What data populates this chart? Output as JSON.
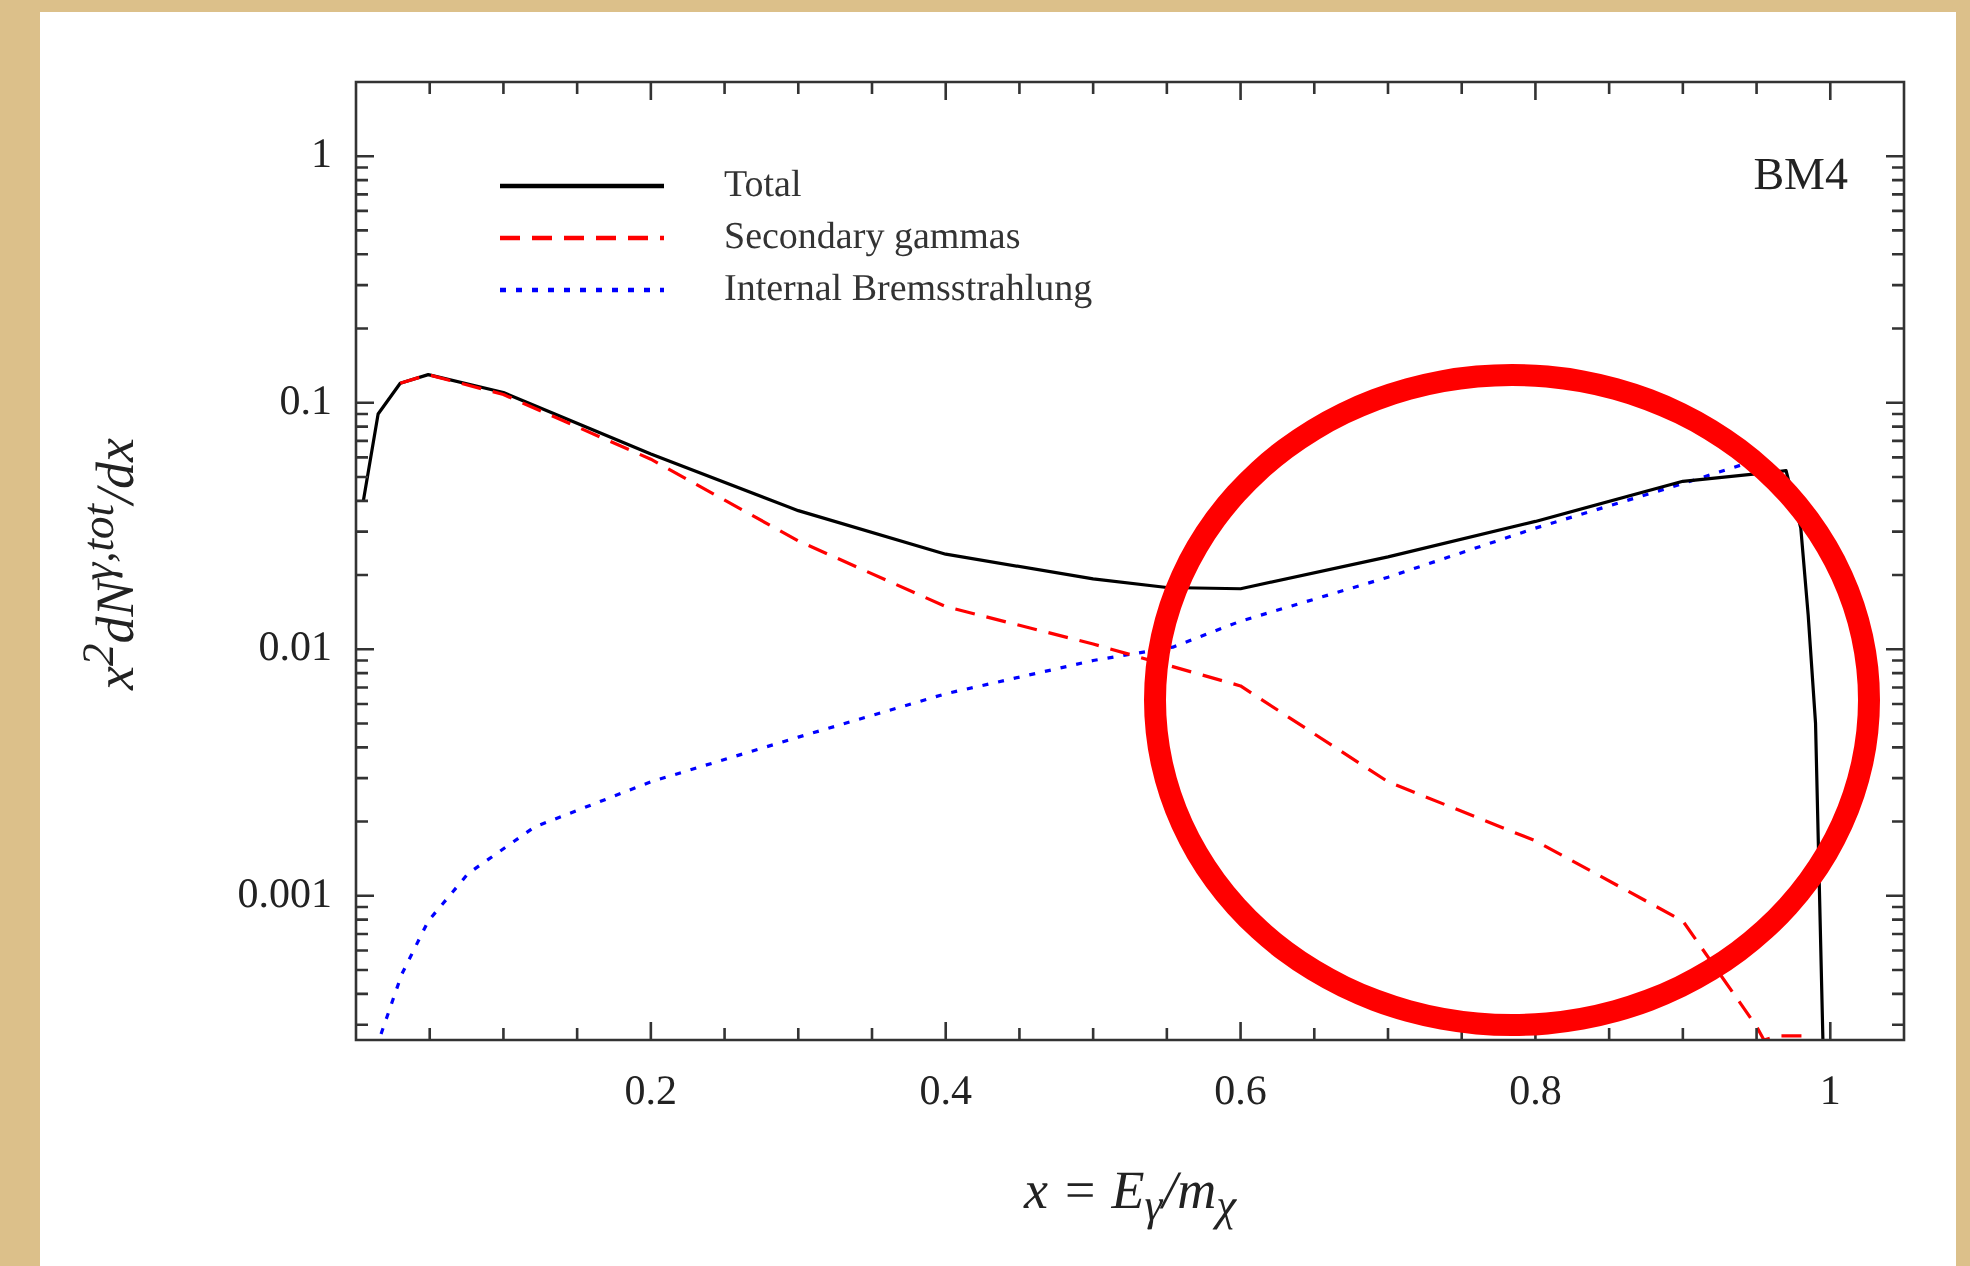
{
  "chart_data": {
    "type": "line",
    "xlabel": "x = E$_{γ}$/m$_{χ}$",
    "ylabel": "x$^{2}$dN$^{γ,tot}$/dx",
    "annotations": [
      "BM4"
    ],
    "log": "y",
    "grid": false,
    "legend": "top left",
    "marker": "none",
    "xlim": [
      0,
      1.05
    ],
    "ylim": [
      0.00026,
      2
    ],
    "xticks": [
      {
        "value": 0.05,
        "label": null
      },
      {
        "value": 0.1,
        "label": null
      },
      {
        "value": 0.15,
        "label": null
      },
      0.2,
      {
        "value": 0.25,
        "label": null
      },
      {
        "value": 0.3,
        "label": null
      },
      {
        "value": 0.35,
        "label": null
      },
      0.4,
      {
        "value": 0.45,
        "label": null
      },
      {
        "value": 0.5,
        "label": null
      },
      {
        "value": 0.55,
        "label": null
      },
      0.6,
      {
        "value": 0.65,
        "label": null
      },
      {
        "value": 0.7,
        "label": null
      },
      {
        "value": 0.75,
        "label": null
      },
      0.8,
      {
        "value": 0.85,
        "label": null
      },
      {
        "value": 0.9,
        "label": null
      },
      {
        "value": 0.95,
        "label": null
      },
      1
    ],
    "yticks": [
      {
        "value": 0.0003,
        "label": null
      },
      {
        "value": 0.0004,
        "label": null
      },
      {
        "value": 0.0005,
        "label": null
      },
      {
        "value": 0.0006,
        "label": null
      },
      {
        "value": 0.0007,
        "label": null
      },
      {
        "value": 0.0008,
        "label": null
      },
      {
        "value": 0.0009,
        "label": null
      },
      0.001,
      {
        "value": 0.002,
        "label": null
      },
      {
        "value": 0.003,
        "label": null
      },
      {
        "value": 0.004,
        "label": null
      },
      {
        "value": 0.005,
        "label": null
      },
      {
        "value": 0.006,
        "label": null
      },
      {
        "value": 0.007,
        "label": null
      },
      {
        "value": 0.008,
        "label": null
      },
      {
        "value": 0.009,
        "label": null
      },
      0.01,
      {
        "value": 0.02,
        "label": null
      },
      {
        "value": 0.03,
        "label": null
      },
      {
        "value": 0.04,
        "label": null
      },
      {
        "value": 0.05,
        "label": null
      },
      {
        "value": 0.06,
        "label": null
      },
      {
        "value": 0.07,
        "label": null
      },
      {
        "value": 0.08,
        "label": null
      },
      {
        "value": 0.09,
        "label": null
      },
      0.1,
      {
        "value": 0.2,
        "label": null
      },
      {
        "value": 0.3,
        "label": null
      },
      {
        "value": 0.4,
        "label": null
      },
      {
        "value": 0.5,
        "label": null
      },
      {
        "value": 0.6,
        "label": null
      },
      {
        "value": 0.7,
        "label": null
      },
      {
        "value": 0.8,
        "label": null
      },
      {
        "value": 0.9,
        "label": null
      },
      1
    ],
    "series": [
      {
        "name": "Total",
        "color": "#000000",
        "line_style": "solid",
        "x": [
          0.005,
          0.015,
          0.03,
          0.049,
          0.1,
          0.2,
          0.3,
          0.4,
          0.5,
          0.55,
          0.6,
          0.7,
          0.8,
          0.9,
          0.97,
          0.98,
          0.985,
          0.99,
          0.995
        ],
        "values": [
          0.04,
          0.09,
          0.12,
          0.13,
          0.11,
          0.062,
          0.0365,
          0.0243,
          0.0193,
          0.0178,
          0.0176,
          0.0237,
          0.033,
          0.048,
          0.053,
          0.031,
          0.0138,
          0.005,
          0.00026
        ]
      },
      {
        "name": "Secondary gammas",
        "color": "#ff0000",
        "line_style": "dashed",
        "x": [
          0.03,
          0.049,
          0.1,
          0.2,
          0.3,
          0.4,
          0.5,
          0.6,
          0.7,
          0.8,
          0.9,
          0.95,
          0.955,
          0.965,
          0.985
        ],
        "values": [
          0.12,
          0.13,
          0.108,
          0.059,
          0.0275,
          0.0149,
          0.0105,
          0.0071,
          0.0029,
          0.00167,
          0.00079,
          0.000295,
          0.00026,
          0.00027,
          0.00027
        ]
      },
      {
        "name": "Internal Bremsstrahlung",
        "color": "#0000ff",
        "line_style": "dotted",
        "x": [
          0.017,
          0.031,
          0.049,
          0.076,
          0.121,
          0.2,
          0.3,
          0.4,
          0.5,
          0.554,
          0.6,
          0.7,
          0.8,
          0.9,
          0.94
        ],
        "values": [
          0.000275,
          0.00048,
          0.00079,
          0.00123,
          0.0019,
          0.0029,
          0.0044,
          0.0066,
          0.009,
          0.0102,
          0.013,
          0.0196,
          0.031,
          0.047,
          0.056
        ]
      }
    ]
  }
}
